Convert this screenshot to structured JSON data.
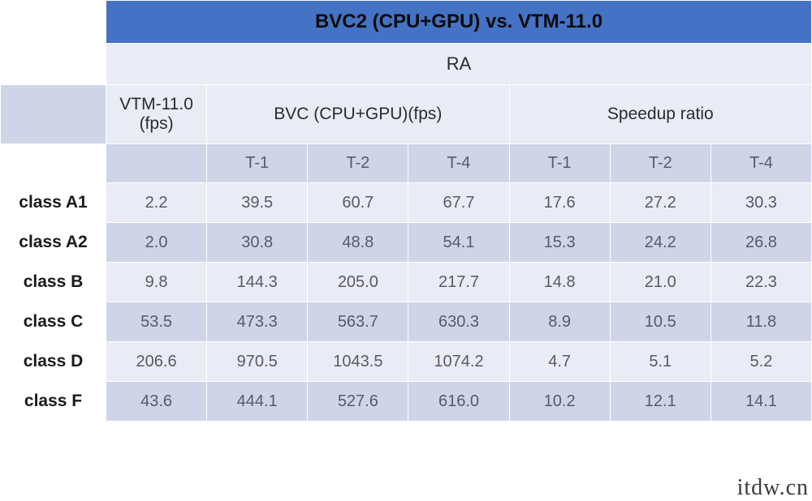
{
  "table": {
    "title": "BVC2 (CPU+GPU) vs. VTM-11.0",
    "super_header": "RA",
    "groups": {
      "vtm": "VTM-11.0 (fps)",
      "bvc": "BVC (CPU+GPU)(fps)",
      "speedup": "Speedup ratio"
    },
    "sub_columns": {
      "t1": "T-1",
      "t2": "T-2",
      "t4": "T-4"
    },
    "rows": [
      {
        "label": "class A1",
        "vtm": "2.2",
        "bvc": {
          "t1": "39.5",
          "t2": "60.7",
          "t4": "67.7"
        },
        "speedup": {
          "t1": "17.6",
          "t2": "27.2",
          "t4": "30.3"
        }
      },
      {
        "label": "class A2",
        "vtm": "2.0",
        "bvc": {
          "t1": "30.8",
          "t2": "48.8",
          "t4": "54.1"
        },
        "speedup": {
          "t1": "15.3",
          "t2": "24.2",
          "t4": "26.8"
        }
      },
      {
        "label": "class B",
        "vtm": "9.8",
        "bvc": {
          "t1": "144.3",
          "t2": "205.0",
          "t4": "217.7"
        },
        "speedup": {
          "t1": "14.8",
          "t2": "21.0",
          "t4": "22.3"
        }
      },
      {
        "label": "class C",
        "vtm": "53.5",
        "bvc": {
          "t1": "473.3",
          "t2": "563.7",
          "t4": "630.3"
        },
        "speedup": {
          "t1": "8.9",
          "t2": "10.5",
          "t4": "11.8"
        }
      },
      {
        "label": "class D",
        "vtm": "206.6",
        "bvc": {
          "t1": "970.5",
          "t2": "1043.5",
          "t4": "1074.2"
        },
        "speedup": {
          "t1": "4.7",
          "t2": "5.1",
          "t4": "5.2"
        }
      },
      {
        "label": "class F",
        "vtm": "43.6",
        "bvc": {
          "t1": "444.1",
          "t2": "527.6",
          "t4": "616.0"
        },
        "speedup": {
          "t1": "10.2",
          "t2": "12.1",
          "t4": "14.1"
        }
      }
    ],
    "colors": {
      "title_bg": "#4472c4",
      "band_light": "#e9ecf5",
      "band_dark": "#cfd5e7",
      "border": "#ffffff",
      "text_muted": "#555b66",
      "text_strong": "#1a1a1a"
    },
    "fonts": {
      "title_size_pt": 18,
      "header_size_pt": 16,
      "body_size_pt": 15
    }
  },
  "watermark": "itdw.cn"
}
